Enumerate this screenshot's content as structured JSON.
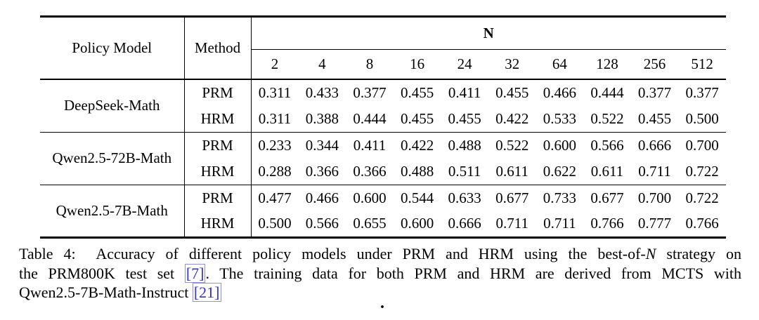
{
  "page": {
    "background": "#ffffff",
    "text_color": "#000000",
    "citation_color": "#3232c8"
  },
  "table": {
    "headers": {
      "policy_model": "Policy Model",
      "method": "Method",
      "n_group_label": "N"
    },
    "n_columns": [
      "2",
      "4",
      "8",
      "16",
      "24",
      "32",
      "64",
      "128",
      "256",
      "512"
    ],
    "groups": [
      {
        "model": "DeepSeek-Math",
        "rows": [
          {
            "method": "PRM",
            "values": [
              "0.311",
              "0.433",
              "0.377",
              "0.455",
              "0.411",
              "0.455",
              "0.466",
              "0.444",
              "0.377",
              "0.377"
            ],
            "bold": [
              0,
              0,
              0,
              0,
              0,
              0,
              0,
              0,
              0,
              0
            ]
          },
          {
            "method": "HRM",
            "values": [
              "0.311",
              "0.388",
              "0.444",
              "0.455",
              "0.455",
              "0.422",
              "0.533",
              "0.522",
              "0.455",
              "0.500"
            ],
            "bold": [
              0,
              0,
              1,
              0,
              1,
              0,
              1,
              1,
              1,
              1
            ]
          }
        ]
      },
      {
        "model": "Qwen2.5-72B-Math",
        "rows": [
          {
            "method": "PRM",
            "values": [
              "0.233",
              "0.344",
              "0.411",
              "0.422",
              "0.488",
              "0.522",
              "0.600",
              "0.566",
              "0.666",
              "0.700"
            ],
            "bold": [
              0,
              0,
              0,
              0,
              0,
              0,
              0,
              0,
              0,
              0
            ]
          },
          {
            "method": "HRM",
            "values": [
              "0.288",
              "0.366",
              "0.366",
              "0.488",
              "0.511",
              "0.611",
              "0.622",
              "0.611",
              "0.711",
              "0.722"
            ],
            "bold": [
              1,
              1,
              0,
              1,
              1,
              1,
              1,
              1,
              1,
              1
            ]
          }
        ]
      },
      {
        "model": "Qwen2.5-7B-Math",
        "rows": [
          {
            "method": "PRM",
            "values": [
              "0.477",
              "0.466",
              "0.600",
              "0.544",
              "0.633",
              "0.677",
              "0.733",
              "0.677",
              "0.700",
              "0.722"
            ],
            "bold": [
              0,
              0,
              0,
              0,
              0,
              0,
              0,
              0,
              0,
              0
            ]
          },
          {
            "method": "HRM",
            "values": [
              "0.500",
              "0.566",
              "0.655",
              "0.600",
              "0.666",
              "0.711",
              "0.711",
              "0.766",
              "0.777",
              "0.766"
            ],
            "bold": [
              1,
              1,
              1,
              1,
              1,
              1,
              0,
              1,
              1,
              1
            ]
          }
        ]
      }
    ]
  },
  "caption": {
    "line1_pre": "Table 4:  Accuracy of different policy models under PRM and HRM using the best-of-",
    "line1_math_n": "N",
    "line1_post": " strategy on",
    "line2_pre": "the PRM800K test set ",
    "line2_citation": "[7]",
    "line2_post": ". The training data for both PRM and HRM are derived from MCTS with",
    "line3_pre": "Qwen2.5-7B-Math-Instruct ",
    "line3_citation": "[21]"
  },
  "stray_mark": "."
}
